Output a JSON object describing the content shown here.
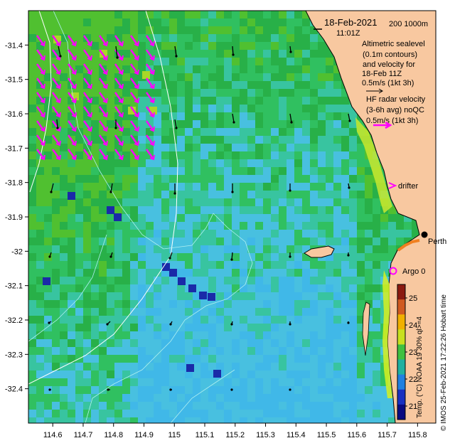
{
  "map": {
    "lon_ticks": [
      "114.6",
      "114.7",
      "114.8",
      "114.9",
      "115",
      "115.1",
      "115.2",
      "115.3",
      "115.4",
      "115.5",
      "115.6",
      "115.7",
      "115.8"
    ],
    "lat_ticks": [
      "-31.4",
      "-31.5",
      "-31.6",
      "-31.7",
      "-31.8",
      "-31.9",
      "-32",
      "-32.1",
      "-32.2",
      "-32.3",
      "-32.4"
    ],
    "lon_range": [
      114.52,
      115.86
    ],
    "lat_range": [
      -32.5,
      -31.3
    ],
    "land_color": "#f8c8a0",
    "sea_colors": [
      "#1a2ad0",
      "#2a70e8",
      "#40b0ee",
      "#38c880",
      "#20b048",
      "#60c030",
      "#c0e020"
    ]
  },
  "legend": {
    "date": "18-Feb-2021",
    "time": "11:01Z",
    "isobaths": "200  1000m",
    "altimetry_text": [
      "Altimetric sealevel",
      "(0.1m contours)",
      "and velocity for",
      "18-Feb 11Z",
      "0.5m/s (1kt 3h)"
    ],
    "hf_text": [
      "HF radar velocity",
      "(3-6h avg) noQC",
      "0.5m/s (1kt 3h)"
    ],
    "drifter_label": "drifter",
    "argo_label": "Argo 0",
    "city_label": "Perth"
  },
  "colorbar": {
    "ticks": [
      "25",
      "24",
      "23",
      "22",
      "21"
    ],
    "values": [
      25,
      24,
      23,
      22,
      21
    ],
    "title": "Temp. (°C) NOAA 19 30% ql>=4",
    "colors": [
      "#8b1a10",
      "#d05a20",
      "#f0b000",
      "#c8e020",
      "#40c040",
      "#20b0a0",
      "#2080e0",
      "#1a30c0",
      "#0a0a80"
    ]
  },
  "credit": "© IMOS 25-Feb-2021 17:22:26 Hobart time",
  "colors": {
    "hf_arrow": "#ff00ff",
    "alt_arrow": "#000000",
    "contour": "#b0f0f0",
    "isobath": "#ffffff"
  }
}
